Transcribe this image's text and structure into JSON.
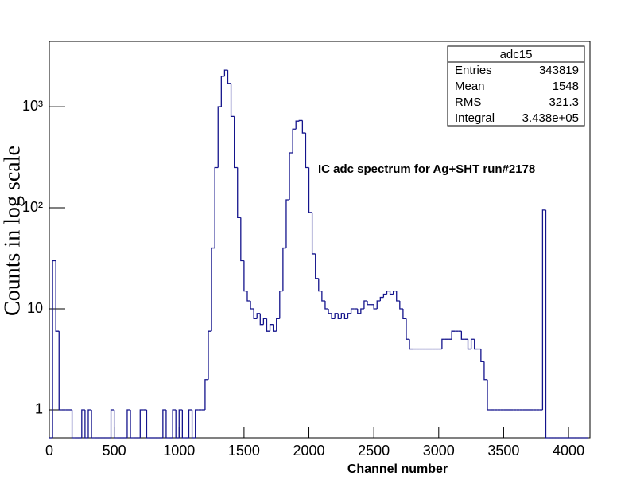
{
  "chart_data": {
    "type": "histogram",
    "annotation": "IC adc spectrum for Ag+SHT run#2178",
    "x_label": "Channel number",
    "y_label": "Counts in log scale",
    "color": "#14148c",
    "log_y": true,
    "xlim": [
      0,
      4165
    ],
    "ylim": [
      0.53,
      4430
    ],
    "xticks": [
      0,
      500,
      1000,
      1500,
      2000,
      2500,
      3000,
      3500,
      4000
    ],
    "yticks": [
      1,
      10,
      {
        "value": 100,
        "label": "10²"
      },
      {
        "value": 1000,
        "label": "10³"
      }
    ],
    "bins": [
      0,
      25,
      50,
      75,
      100,
      125,
      150,
      175,
      200,
      225,
      250,
      275,
      300,
      325,
      350,
      375,
      400,
      425,
      450,
      475,
      500,
      525,
      550,
      575,
      600,
      625,
      650,
      675,
      700,
      725,
      750,
      775,
      800,
      825,
      850,
      875,
      900,
      925,
      950,
      975,
      1000,
      1025,
      1050,
      1075,
      1100,
      1125,
      1150,
      1175,
      1200,
      1225,
      1250,
      1275,
      1300,
      1325,
      1350,
      1375,
      1400,
      1425,
      1450,
      1475,
      1500,
      1525,
      1550,
      1575,
      1600,
      1625,
      1650,
      1675,
      1700,
      1725,
      1750,
      1775,
      1800,
      1825,
      1850,
      1875,
      1900,
      1925,
      1950,
      1975,
      2000,
      2025,
      2050,
      2075,
      2100,
      2125,
      2150,
      2175,
      2200,
      2225,
      2250,
      2275,
      2300,
      2325,
      2350,
      2375,
      2400,
      2425,
      2450,
      2475,
      2500,
      2525,
      2550,
      2575,
      2600,
      2625,
      2650,
      2675,
      2700,
      2725,
      2750,
      2775,
      2800,
      2825,
      2850,
      2875,
      2900,
      2925,
      2950,
      2975,
      3000,
      3025,
      3050,
      3075,
      3100,
      3125,
      3150,
      3175,
      3200,
      3225,
      3250,
      3275,
      3300,
      3325,
      3350,
      3375,
      3400,
      3425,
      3450,
      3475,
      3500,
      3525,
      3550,
      3575,
      3600,
      3625,
      3650,
      3675,
      3700,
      3725,
      3750,
      3775,
      3800,
      3825,
      3850,
      3875,
      3900,
      3925,
      3950,
      3975,
      4000,
      4025,
      4050,
      4075,
      4100,
      4125,
      4150
    ],
    "values": [
      0,
      30,
      6,
      1,
      1,
      1,
      1,
      0,
      0,
      0,
      1,
      0,
      1,
      0,
      0,
      0,
      0,
      0,
      0,
      1,
      0,
      0,
      0,
      0,
      1,
      0,
      0,
      0,
      1,
      1,
      0,
      0,
      0,
      0,
      0,
      1,
      0,
      0,
      1,
      0,
      1,
      0,
      0,
      1,
      0,
      1,
      1,
      1,
      2,
      6,
      40,
      250,
      1000,
      2000,
      2300,
      1700,
      800,
      250,
      80,
      30,
      15,
      12,
      10,
      8,
      9,
      7,
      8,
      6,
      7,
      6,
      8,
      15,
      40,
      120,
      350,
      600,
      720,
      730,
      550,
      250,
      90,
      35,
      20,
      15,
      12,
      10,
      9,
      8,
      9,
      8,
      9,
      8,
      9,
      10,
      10,
      9,
      10,
      12,
      11,
      11,
      10,
      12,
      13,
      14,
      15,
      14,
      15,
      12,
      10,
      8,
      5,
      4,
      4,
      4,
      4,
      4,
      4,
      4,
      4,
      4,
      4,
      5,
      5,
      5,
      6,
      6,
      6,
      5,
      5,
      4,
      5,
      4,
      4,
      3,
      2,
      1,
      1,
      1,
      1,
      1,
      1,
      1,
      1,
      1,
      1,
      1,
      1,
      1,
      1,
      1,
      1,
      1,
      95,
      0,
      0,
      0,
      0,
      0,
      0,
      0,
      0,
      0,
      0,
      0,
      0,
      0,
      0
    ],
    "stats": {
      "title": "adc15",
      "rows": [
        [
          "Entries",
          "343819"
        ],
        [
          "Mean",
          "1548"
        ],
        [
          "RMS",
          "321.3"
        ],
        [
          "Integral",
          "3.438e+05"
        ]
      ]
    }
  }
}
